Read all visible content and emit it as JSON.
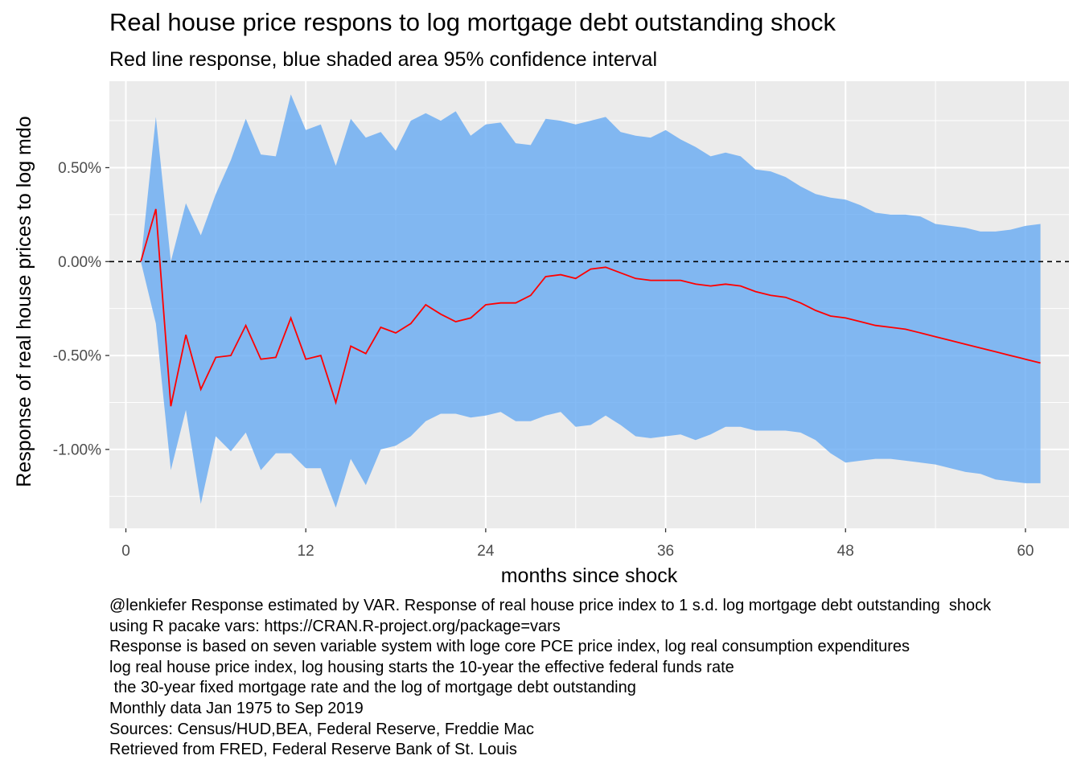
{
  "title": "Real house price respons to log mortgage debt outstanding shock",
  "subtitle": "Red line response, blue shaded area 95% confidence interval",
  "caption_lines": [
    "@lenkiefer Response estimated by VAR. Response of real house price index to 1 s.d. log mortgage debt outstanding  shock",
    "using R pacake vars: https://CRAN.R-project.org/package=vars",
    "Response is based on seven variable system with loge core PCE price index, log real consumption expenditures",
    "log real house price index, log housing starts the 10-year the effective federal funds rate",
    " the 30-year fixed mortgage rate and the log of mortgage debt outstanding",
    "Monthly data Jan 1975 to Sep 2019",
    "Sources: Census/HUD,BEA, Federal Reserve, Freddie Mac",
    "Retrieved from FRED, Federal Reserve Bank of St. Louis"
  ],
  "colors": {
    "panel_background": "#ebebeb",
    "grid": "#ffffff",
    "ribbon": "#66aaf2",
    "response_line": "#ff0000",
    "zero_line": "#000000"
  },
  "chart_data": {
    "type": "area",
    "title": "Real house price respons to log mortgage debt outstanding shock",
    "subtitle": "Red line response, blue shaded area 95% confidence interval",
    "xlabel": "months since shock",
    "ylabel": "Response of real house prices to log mdo",
    "xlim": [
      -1.1,
      62.9
    ],
    "ylim": [
      -1.42,
      0.96
    ],
    "x_ticks": [
      0,
      12,
      24,
      36,
      48,
      60
    ],
    "x_tick_labels": [
      "0",
      "12",
      "24",
      "36",
      "48",
      "60"
    ],
    "y_ticks": [
      0.5,
      0.0,
      -0.5,
      -1.0
    ],
    "y_tick_labels": [
      "0.50%",
      "0.00%",
      "-0.50%",
      "-1.00%"
    ],
    "y_units": "percent",
    "grid": true,
    "reference_line": {
      "y": 0,
      "style": "dashed"
    },
    "x": [
      1,
      2,
      3,
      4,
      5,
      6,
      7,
      8,
      9,
      10,
      11,
      12,
      13,
      14,
      15,
      16,
      17,
      18,
      19,
      20,
      21,
      22,
      23,
      24,
      25,
      26,
      27,
      28,
      29,
      30,
      31,
      32,
      33,
      34,
      35,
      36,
      37,
      38,
      39,
      40,
      41,
      42,
      43,
      44,
      45,
      46,
      47,
      48,
      49,
      50,
      51,
      52,
      53,
      54,
      55,
      56,
      57,
      58,
      59,
      60,
      61
    ],
    "series": [
      {
        "type": "ribbon",
        "upper": [
          0.0,
          0.77,
          0.0,
          0.31,
          0.14,
          0.36,
          0.54,
          0.76,
          0.57,
          0.56,
          0.89,
          0.7,
          0.73,
          0.51,
          0.76,
          0.66,
          0.69,
          0.59,
          0.75,
          0.79,
          0.75,
          0.8,
          0.67,
          0.73,
          0.74,
          0.63,
          0.62,
          0.76,
          0.75,
          0.73,
          0.75,
          0.77,
          0.69,
          0.67,
          0.66,
          0.7,
          0.65,
          0.61,
          0.56,
          0.58,
          0.56,
          0.49,
          0.48,
          0.45,
          0.4,
          0.36,
          0.34,
          0.33,
          0.3,
          0.26,
          0.25,
          0.25,
          0.24,
          0.2,
          0.19,
          0.18,
          0.16,
          0.16,
          0.17,
          0.19,
          0.2
        ],
        "lower": [
          0.0,
          -0.33,
          -1.11,
          -0.79,
          -1.29,
          -0.93,
          -1.01,
          -0.91,
          -1.11,
          -1.02,
          -1.02,
          -1.1,
          -1.1,
          -1.31,
          -1.05,
          -1.19,
          -1.0,
          -0.98,
          -0.93,
          -0.85,
          -0.81,
          -0.81,
          -0.83,
          -0.82,
          -0.8,
          -0.85,
          -0.85,
          -0.82,
          -0.8,
          -0.88,
          -0.87,
          -0.82,
          -0.87,
          -0.93,
          -0.94,
          -0.93,
          -0.92,
          -0.95,
          -0.92,
          -0.88,
          -0.88,
          -0.9,
          -0.9,
          -0.9,
          -0.91,
          -0.95,
          -1.02,
          -1.07,
          -1.06,
          -1.05,
          -1.05,
          -1.06,
          -1.07,
          -1.08,
          -1.1,
          -1.12,
          -1.13,
          -1.16,
          -1.17,
          -1.18,
          -1.18
        ]
      },
      {
        "type": "line",
        "values": [
          0.0,
          0.28,
          -0.77,
          -0.39,
          -0.68,
          -0.51,
          -0.5,
          -0.34,
          -0.52,
          -0.51,
          -0.3,
          -0.52,
          -0.5,
          -0.75,
          -0.45,
          -0.49,
          -0.35,
          -0.38,
          -0.33,
          -0.23,
          -0.28,
          -0.32,
          -0.3,
          -0.23,
          -0.22,
          -0.22,
          -0.18,
          -0.08,
          -0.07,
          -0.09,
          -0.04,
          -0.03,
          -0.06,
          -0.09,
          -0.1,
          -0.1,
          -0.1,
          -0.12,
          -0.13,
          -0.12,
          -0.13,
          -0.16,
          -0.18,
          -0.19,
          -0.22,
          -0.26,
          -0.29,
          -0.3,
          -0.32,
          -0.34,
          -0.35,
          -0.36,
          -0.38,
          -0.4,
          -0.42,
          -0.44,
          -0.46,
          -0.48,
          -0.5,
          -0.52,
          -0.54
        ]
      }
    ]
  }
}
